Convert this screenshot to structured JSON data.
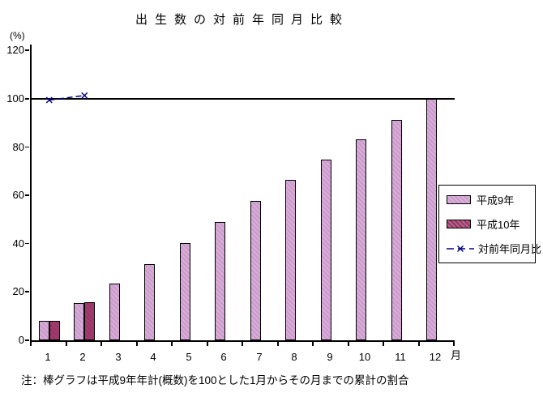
{
  "title": "出生数の対前年同月比較",
  "y_axis_unit": "(%)",
  "x_axis_unit": "月",
  "note": "注：棒グラフは平成9年年計(概数)を100とした1月からその月までの累計の割合",
  "colors": {
    "bar_h9": "#cc99cc",
    "bar_h10": "#993366",
    "line": "#000080",
    "axis": "#000000",
    "background": "#ffffff"
  },
  "chart_data": {
    "type": "bar",
    "title": "出生数の対前年同月比較",
    "categories": [
      "1",
      "2",
      "3",
      "4",
      "5",
      "6",
      "7",
      "8",
      "9",
      "10",
      "11",
      "12"
    ],
    "series": [
      {
        "name": "平成9年",
        "kind": "bar",
        "color": "#cc99cc",
        "values": [
          8,
          15.4,
          23.4,
          31.6,
          40.2,
          48.9,
          57.6,
          66.4,
          74.8,
          83.3,
          91.3,
          100
        ]
      },
      {
        "name": "平成10年",
        "kind": "bar",
        "color": "#993366",
        "values": [
          8,
          15.8,
          null,
          null,
          null,
          null,
          null,
          null,
          null,
          null,
          null,
          null
        ]
      },
      {
        "name": "対前年同月比",
        "kind": "line",
        "color": "#000080",
        "marker": "x",
        "values": [
          99.5,
          101.4,
          null,
          null,
          null,
          null,
          null,
          null,
          null,
          null,
          null,
          null
        ]
      }
    ],
    "xlabel": "月",
    "ylabel": "(%)",
    "yticks": [
      0,
      20,
      40,
      60,
      80,
      100,
      120
    ],
    "ylim": [
      0,
      122.5
    ],
    "reference_line": 100,
    "grid": false,
    "legend_position": "right"
  }
}
